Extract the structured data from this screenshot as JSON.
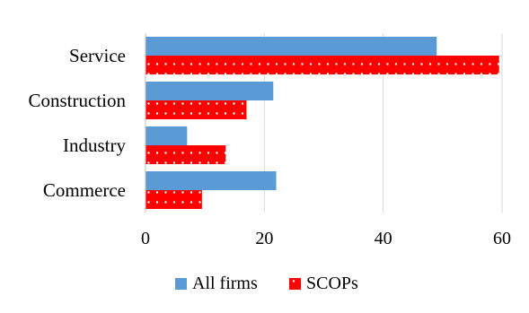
{
  "chart_data": {
    "type": "bar",
    "orientation": "horizontal",
    "categories": [
      "Service",
      "Construction",
      "Industry",
      "Commerce"
    ],
    "series": [
      {
        "name": "All firms",
        "values": [
          49,
          21.5,
          7,
          22
        ],
        "color": "#5b9bd5",
        "pattern": "solid"
      },
      {
        "name": "SCOPs",
        "values": [
          59.5,
          17,
          13.5,
          9.5
        ],
        "color": "#ff0000",
        "pattern": "white-dots"
      }
    ],
    "xlim": [
      0,
      60
    ],
    "xticks": [
      "0",
      "20",
      "40",
      "60"
    ],
    "grid": "vertical",
    "legend": "bottom-center",
    "title": "",
    "xlabel": "",
    "ylabel": ""
  }
}
